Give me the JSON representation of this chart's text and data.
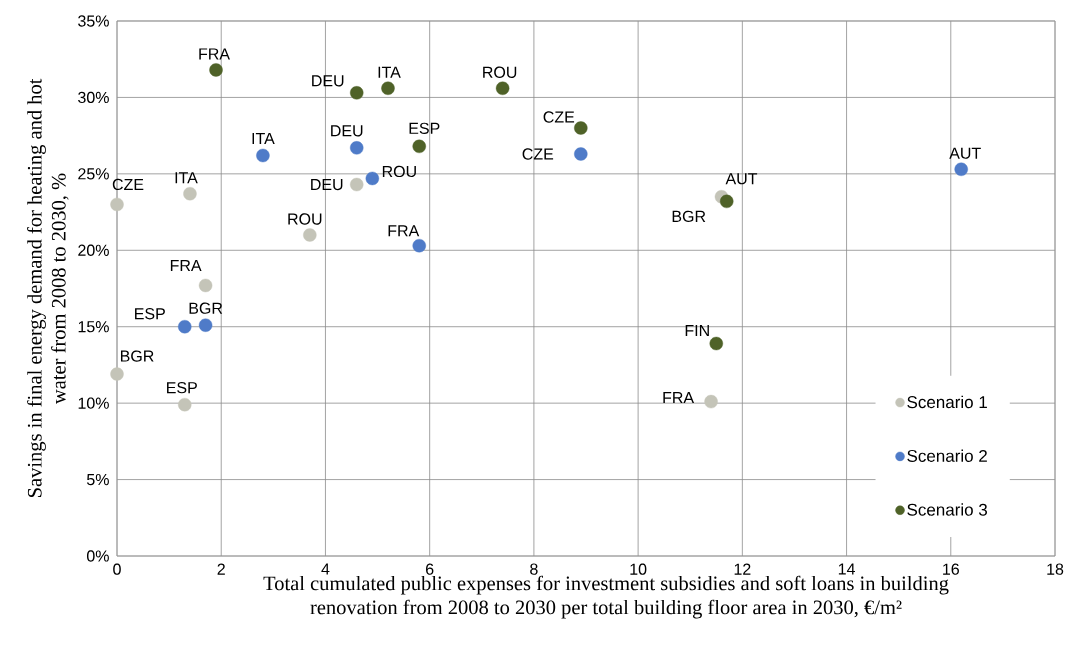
{
  "chart_data": {
    "type": "scatter",
    "xlabel": "Total cumulated public expenses for investment subsidies and soft loans in building renovation from 2008 to 2030 per total building floor area in 2030, €/m²",
    "ylabel": "Savings in final energy demand for heating and hot water from 2008 to 2030, %",
    "xlim": [
      0,
      18
    ],
    "ylim": [
      0,
      35
    ],
    "xticks": [
      0,
      2,
      4,
      6,
      8,
      10,
      12,
      14,
      16,
      18
    ],
    "yticks": [
      {
        "value": 0,
        "label": "0%"
      },
      {
        "value": 5,
        "label": "5%"
      },
      {
        "value": 10,
        "label": "10%"
      },
      {
        "value": 15,
        "label": "15%"
      },
      {
        "value": 20,
        "label": "20%"
      },
      {
        "value": 25,
        "label": "25%"
      },
      {
        "value": 30,
        "label": "30%"
      },
      {
        "value": 35,
        "label": "35%"
      }
    ],
    "grid": true,
    "legend": "bottom right",
    "marker": "circle",
    "series": [
      {
        "name": "Scenario 1",
        "color": "#c4c4b8",
        "x": [
          0,
          1.4,
          4.6,
          3.7,
          1.7,
          0,
          1.3,
          11.4,
          11.6
        ],
        "values": [
          23.0,
          23.7,
          24.3,
          21.0,
          17.7,
          11.9,
          9.9,
          10.1,
          23.5
        ]
      },
      {
        "name": "Scenario 2",
        "color": "#4f7bc8",
        "x": [
          2.8,
          4.6,
          4.9,
          5.8,
          1.3,
          1.7,
          8.9,
          16.2
        ],
        "values": [
          26.2,
          26.7,
          24.7,
          20.3,
          15.0,
          15.1,
          26.3,
          25.3
        ]
      },
      {
        "name": "Scenario 3",
        "color": "#4f6228",
        "x": [
          1.9,
          4.6,
          5.2,
          5.8,
          7.4,
          8.9,
          11.7,
          11.5
        ],
        "values": [
          31.8,
          30.3,
          30.6,
          26.8,
          30.6,
          28.0,
          23.2,
          13.9
        ]
      }
    ],
    "annotations": [
      {
        "text": "CZE",
        "x": 0,
        "y": 23.0
      },
      {
        "text": "ITA",
        "x": 1.4,
        "y": 23.7
      },
      {
        "text": "DEU",
        "x": 4.6,
        "y": 24.3
      },
      {
        "text": "ROU",
        "x": 3.7,
        "y": 21.0
      },
      {
        "text": "FRA",
        "x": 1.7,
        "y": 17.7
      },
      {
        "text": "BGR",
        "x": 0,
        "y": 11.9
      },
      {
        "text": "ESP",
        "x": 1.3,
        "y": 9.9
      },
      {
        "text": "FRA",
        "x": 11.4,
        "y": 10.1
      },
      {
        "text": "AUT",
        "x": 11.6,
        "y": 23.5
      },
      {
        "text": "ITA",
        "x": 2.8,
        "y": 26.2
      },
      {
        "text": "DEU",
        "x": 4.6,
        "y": 26.7
      },
      {
        "text": "ROU",
        "x": 4.9,
        "y": 24.7
      },
      {
        "text": "FRA",
        "x": 5.8,
        "y": 20.3
      },
      {
        "text": "ESP",
        "x": 1.3,
        "y": 15.0
      },
      {
        "text": "BGR",
        "x": 1.7,
        "y": 15.1
      },
      {
        "text": "CZE",
        "x": 8.9,
        "y": 26.3
      },
      {
        "text": "AUT",
        "x": 16.2,
        "y": 25.3
      },
      {
        "text": "FRA",
        "x": 1.9,
        "y": 31.8
      },
      {
        "text": "DEU",
        "x": 4.6,
        "y": 30.3
      },
      {
        "text": "ITA",
        "x": 5.2,
        "y": 30.6
      },
      {
        "text": "ESP",
        "x": 5.8,
        "y": 26.8
      },
      {
        "text": "ROU",
        "x": 7.4,
        "y": 30.6
      },
      {
        "text": "CZE",
        "x": 8.9,
        "y": 28.0
      },
      {
        "text": "BGR",
        "x": 11.7,
        "y": 23.2
      },
      {
        "text": "FIN",
        "x": 11.5,
        "y": 13.9
      }
    ]
  }
}
